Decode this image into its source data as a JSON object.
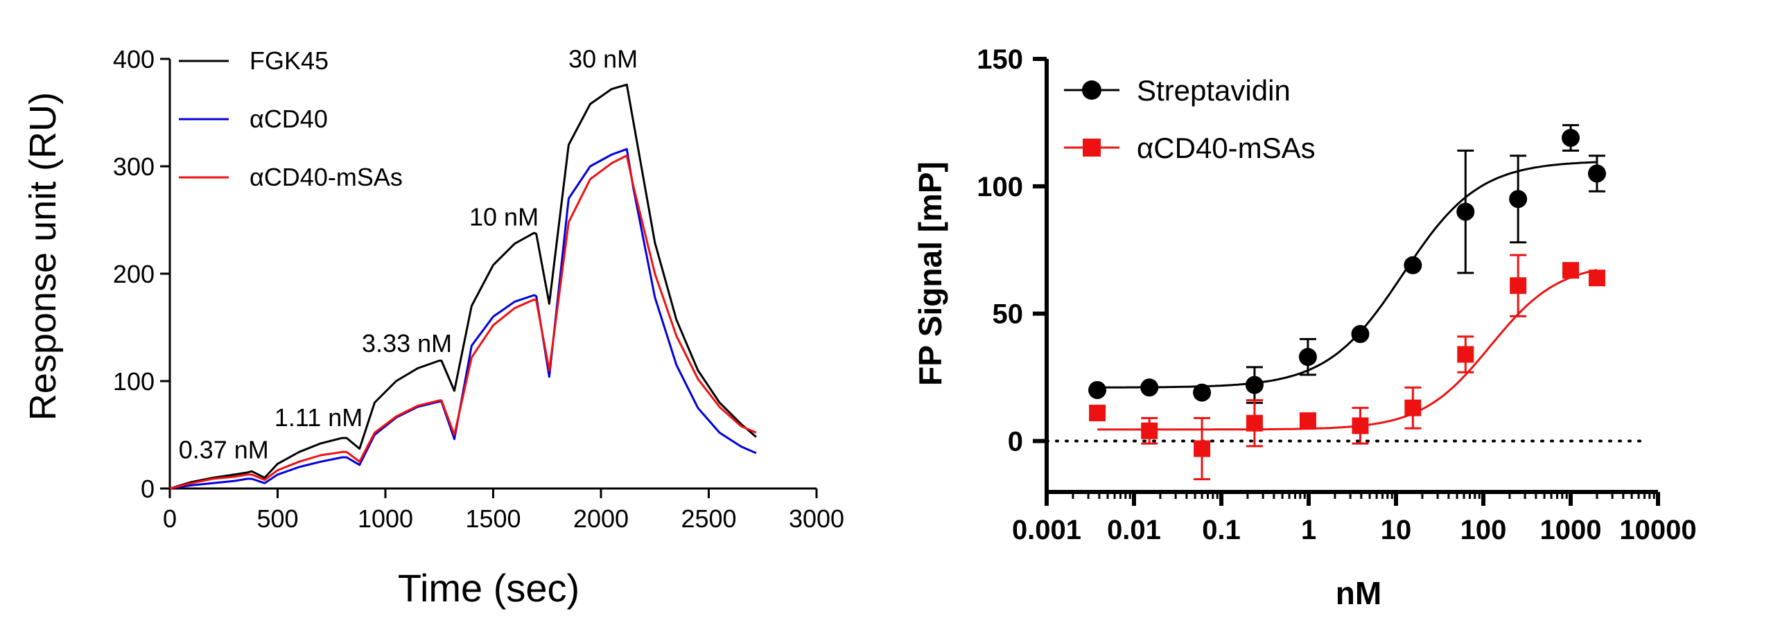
{
  "chart_data": [
    {
      "type": "line",
      "title": "",
      "xlabel": "Time (sec)",
      "ylabel": "Response unit (RU)",
      "xlim": [
        0,
        3000
      ],
      "ylim": [
        0,
        400
      ],
      "xticks": [
        "0",
        "500",
        "1000",
        "1500",
        "2000",
        "2500",
        "3000"
      ],
      "yticks": [
        "0",
        "100",
        "200",
        "300",
        "400"
      ],
      "legend_position": "top-left",
      "annotations": [
        {
          "text": "0.37 nM",
          "x": 250,
          "y": 28
        },
        {
          "text": "1.11 nM",
          "x": 690,
          "y": 58
        },
        {
          "text": "3.33 nM",
          "x": 1100,
          "y": 127
        },
        {
          "text": "10 nM",
          "x": 1550,
          "y": 245
        },
        {
          "text": "30 nM",
          "x": 2010,
          "y": 392
        }
      ],
      "series": [
        {
          "name": "FGK45",
          "color": "#000000",
          "x": [
            0,
            100,
            200,
            300,
            360,
            380,
            440,
            500,
            600,
            700,
            800,
            820,
            880,
            950,
            1050,
            1150,
            1250,
            1260,
            1320,
            1400,
            1500,
            1600,
            1690,
            1700,
            1760,
            1850,
            1950,
            2050,
            2120,
            2150,
            2250,
            2350,
            2450,
            2550,
            2650,
            2720
          ],
          "y": [
            0,
            6,
            10,
            13,
            15,
            16,
            10,
            23,
            34,
            42,
            47,
            47,
            37,
            80,
            100,
            112,
            119,
            119,
            91,
            170,
            208,
            228,
            238,
            237,
            172,
            320,
            358,
            372,
            376,
            342,
            229,
            157,
            110,
            80,
            60,
            48
          ]
        },
        {
          "name": "αCD40",
          "color": "#0000dd",
          "x": [
            0,
            100,
            200,
            300,
            360,
            380,
            440,
            500,
            600,
            700,
            800,
            820,
            880,
            950,
            1050,
            1150,
            1250,
            1260,
            1320,
            1400,
            1500,
            1600,
            1690,
            1700,
            1760,
            1850,
            1950,
            2050,
            2120,
            2150,
            2250,
            2350,
            2450,
            2550,
            2650,
            2720
          ],
          "y": [
            0,
            3,
            5,
            7,
            9,
            9,
            5,
            13,
            20,
            25,
            29,
            29,
            22,
            50,
            66,
            76,
            81,
            81,
            46,
            133,
            160,
            174,
            180,
            179,
            104,
            270,
            300,
            311,
            316,
            280,
            178,
            115,
            75,
            52,
            39,
            33
          ]
        },
        {
          "name": "αCD40-mSAs",
          "color": "#ee1111",
          "x": [
            0,
            100,
            200,
            300,
            360,
            380,
            440,
            500,
            600,
            700,
            800,
            820,
            880,
            950,
            1050,
            1150,
            1250,
            1260,
            1320,
            1400,
            1500,
            1600,
            1690,
            1700,
            1760,
            1850,
            1950,
            2050,
            2120,
            2150,
            2250,
            2350,
            2450,
            2550,
            2650,
            2720
          ],
          "y": [
            0,
            5,
            9,
            11,
            13,
            13,
            8,
            17,
            25,
            31,
            34,
            34,
            25,
            52,
            67,
            77,
            82,
            82,
            50,
            122,
            152,
            168,
            176,
            175,
            110,
            248,
            288,
            303,
            310,
            282,
            200,
            142,
            102,
            76,
            58,
            52
          ]
        }
      ]
    },
    {
      "type": "scatter",
      "title": "",
      "xlabel": "nM",
      "ylabel": "FP Signal [mP]",
      "xscale": "log",
      "xlim": [
        0.001,
        10000
      ],
      "ylim": [
        -20,
        150
      ],
      "xticks": [
        "0.001",
        "0.01",
        "0.1",
        "1",
        "10",
        "100",
        "1000",
        "10000"
      ],
      "yticks": [
        "0",
        "50",
        "100",
        "150"
      ],
      "reference_line": {
        "y": 0,
        "style": "dotted"
      },
      "legend_position": "top-left",
      "series": [
        {
          "name": "Streptavidin",
          "color": "#000000",
          "marker": "circle",
          "x": [
            0.0038,
            0.015,
            0.06,
            0.24,
            0.98,
            3.9,
            15.6,
            62.5,
            250,
            1000,
            2000
          ],
          "y": [
            20,
            21,
            19,
            22,
            33,
            42,
            69,
            90,
            95,
            119,
            105
          ],
          "error": [
            0,
            0,
            0,
            7,
            7,
            0,
            0,
            24,
            17,
            5,
            7
          ],
          "fit": {
            "bottom": 21,
            "top": 110,
            "ec50": 12,
            "hill": 1.0
          }
        },
        {
          "name": "αCD40-mSAs",
          "color": "#ee1111",
          "marker": "square",
          "x": [
            0.0038,
            0.015,
            0.06,
            0.24,
            0.98,
            3.9,
            15.6,
            62.5,
            250,
            1000,
            2000
          ],
          "y": [
            11,
            4,
            -3,
            7,
            8,
            6,
            13,
            34,
            61,
            67,
            64
          ],
          "error": [
            0,
            5,
            12,
            9,
            0,
            7,
            8,
            7,
            12,
            0,
            0
          ],
          "fit": {
            "bottom": 4.5,
            "top": 70,
            "ec50": 120,
            "hill": 1.1
          }
        }
      ]
    }
  ]
}
